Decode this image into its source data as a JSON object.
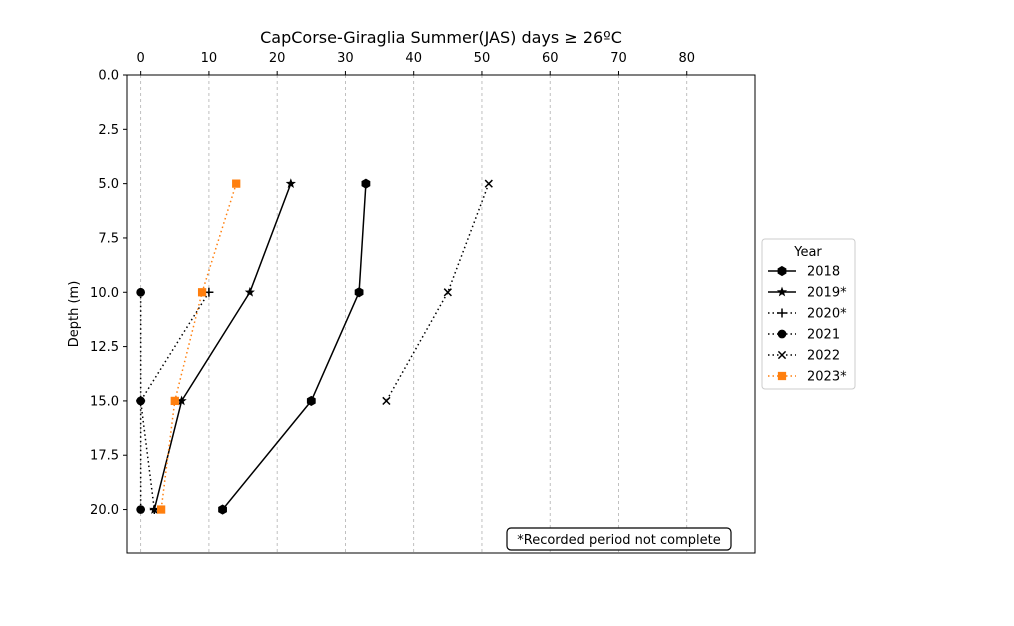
{
  "chart_data": {
    "type": "line",
    "title": "CapCorse-Giraglia Summer(JAS) days ≥ 26ºC",
    "xlabel": "",
    "ylabel": "Depth (m)",
    "x_axis_position": "top",
    "y_axis_inverted": true,
    "xlim": [
      -2,
      90
    ],
    "ylim": [
      22,
      0
    ],
    "x_ticks": [
      0,
      10,
      20,
      30,
      40,
      50,
      60,
      70,
      80
    ],
    "y_ticks": [
      0.0,
      2.5,
      5.0,
      7.5,
      10.0,
      12.5,
      15.0,
      17.5,
      20.0
    ],
    "x_grid": true,
    "y_grid": false,
    "legend": {
      "title": "Year",
      "placement": "outside-right"
    },
    "annotation": "*Recorded period not complete",
    "series": [
      {
        "name": "2018",
        "color": "#000000",
        "linestyle": "solid",
        "marker": "hexagon",
        "points": [
          [
            33,
            5
          ],
          [
            32,
            10
          ],
          [
            25,
            15
          ],
          [
            12,
            20
          ]
        ]
      },
      {
        "name": "2019*",
        "color": "#000000",
        "linestyle": "solid",
        "marker": "star",
        "points": [
          [
            22,
            5
          ],
          [
            16,
            10
          ],
          [
            6,
            15
          ],
          [
            2,
            20
          ]
        ]
      },
      {
        "name": "2020*",
        "color": "#000000",
        "linestyle": "dotted",
        "marker": "plus",
        "points": [
          [
            10,
            10
          ],
          [
            0,
            15
          ],
          [
            2,
            20
          ]
        ]
      },
      {
        "name": "2021",
        "color": "#000000",
        "linestyle": "dotted",
        "marker": "circle",
        "points": [
          [
            0,
            10
          ],
          [
            0,
            15
          ],
          [
            0,
            20
          ]
        ]
      },
      {
        "name": "2022",
        "color": "#000000",
        "linestyle": "dotted",
        "marker": "x",
        "points": [
          [
            51,
            5
          ],
          [
            45,
            10
          ],
          [
            36,
            15
          ]
        ]
      },
      {
        "name": "2023*",
        "color": "#ff7f0e",
        "linestyle": "dotted",
        "marker": "square",
        "points": [
          [
            14,
            5
          ],
          [
            9,
            10
          ],
          [
            5,
            15
          ],
          [
            3,
            20
          ]
        ]
      }
    ]
  }
}
